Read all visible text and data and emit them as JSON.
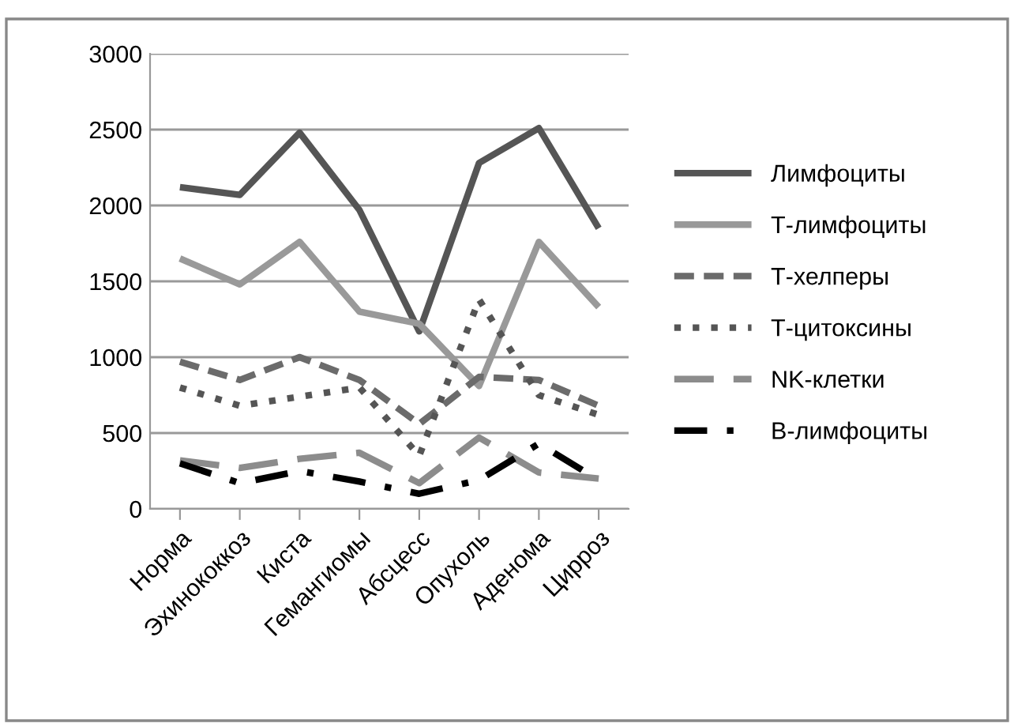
{
  "chart_data": {
    "type": "line",
    "categories": [
      "Норма",
      "Эхинококкоз",
      "Киста",
      "Гемангиомы",
      "Абсцесс",
      "Опухоль",
      "Аденома",
      "Цирроз"
    ],
    "series": [
      {
        "name": "Лимфоциты",
        "color": "#555555",
        "line_style": "solid",
        "values": [
          2120,
          2070,
          2480,
          1970,
          1170,
          2280,
          2510,
          1850
        ]
      },
      {
        "name": "Т-лимфоциты",
        "color": "#999999",
        "line_style": "solid",
        "values": [
          1650,
          1480,
          1760,
          1300,
          1220,
          810,
          1760,
          1330
        ]
      },
      {
        "name": "Т-хелперы",
        "color": "#6b6b6b",
        "line_style": "dashed",
        "values": [
          970,
          850,
          1000,
          850,
          560,
          870,
          850,
          680
        ]
      },
      {
        "name": "Т-цитоксины",
        "color": "#555555",
        "line_style": "dotted",
        "values": [
          800,
          680,
          740,
          800,
          350,
          1380,
          750,
          620
        ]
      },
      {
        "name": "NK-клетки",
        "color": "#8c8c8c",
        "line_style": "longdash",
        "values": [
          320,
          270,
          330,
          370,
          170,
          470,
          240,
          200
        ]
      },
      {
        "name": "B-лимфоциты",
        "color": "#000000",
        "line_style": "dashdot",
        "values": [
          300,
          170,
          250,
          180,
          100,
          190,
          430,
          190
        ]
      }
    ],
    "ylim": [
      0,
      3000
    ],
    "yticks": [
      0,
      500,
      1000,
      1500,
      2000,
      2500,
      3000
    ],
    "grid": "y",
    "legend": "right",
    "marker": "none"
  }
}
